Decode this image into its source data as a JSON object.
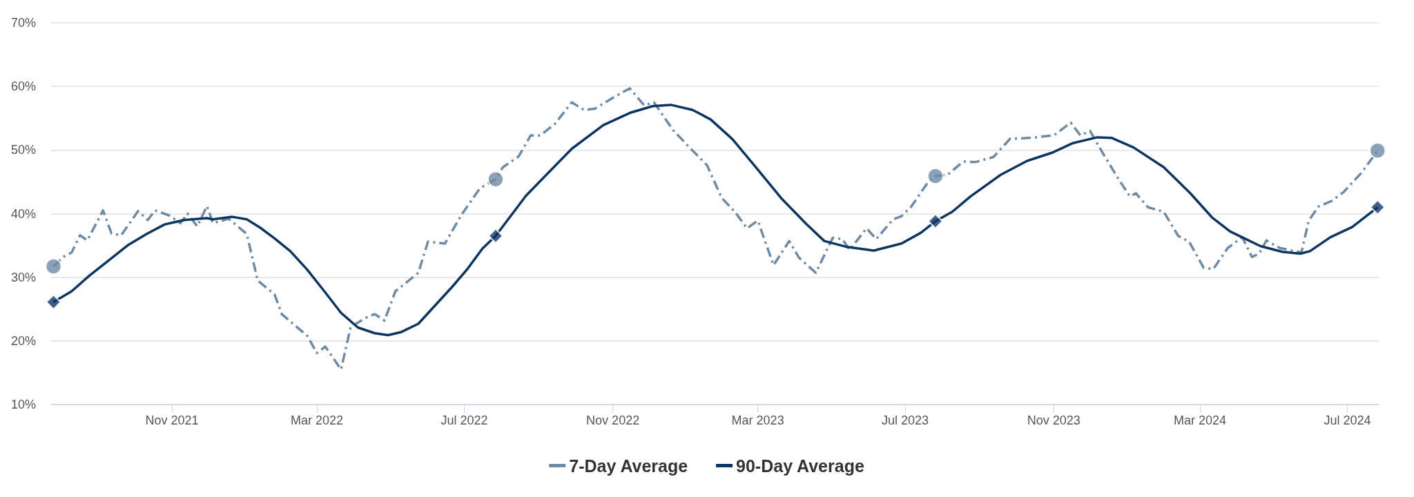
{
  "chart_data": {
    "type": "line",
    "xlim": [
      "2021-07-24",
      "2024-07-27"
    ],
    "xticks": [
      {
        "value": "2021-11-01",
        "label": "Nov 2021"
      },
      {
        "value": "2022-03-01",
        "label": "Mar 2022"
      },
      {
        "value": "2022-07-01",
        "label": "Jul 2022"
      },
      {
        "value": "2022-11-01",
        "label": "Nov 2022"
      },
      {
        "value": "2023-03-01",
        "label": "Mar 2023"
      },
      {
        "value": "2023-07-01",
        "label": "Jul 2023"
      },
      {
        "value": "2023-11-01",
        "label": "Nov 2023"
      },
      {
        "value": "2024-03-01",
        "label": "Mar 2024"
      },
      {
        "value": "2024-07-01",
        "label": "Jul 2024"
      }
    ],
    "ylim": [
      10,
      70
    ],
    "yticks": [
      {
        "value": 10,
        "label": "10%"
      },
      {
        "value": 20,
        "label": "20%"
      },
      {
        "value": 30,
        "label": "30%"
      },
      {
        "value": 40,
        "label": "40%"
      },
      {
        "value": 50,
        "label": "50%"
      },
      {
        "value": 60,
        "label": "60%"
      },
      {
        "value": 70,
        "label": "70%"
      }
    ],
    "grid": "y",
    "legend": "bottom",
    "series": [
      {
        "name": "7-Day Average",
        "color": "#6e8aa5",
        "line_style": "dashed",
        "x": [
          "2021-07-26",
          "2021-08-03",
          "2021-08-10",
          "2021-08-17",
          "2021-08-23",
          "2021-09-05",
          "2021-09-12",
          "2021-09-20",
          "2021-10-04",
          "2021-10-12",
          "2021-10-18",
          "2021-10-30",
          "2021-11-08",
          "2021-11-14",
          "2021-11-22",
          "2021-11-30",
          "2021-12-05",
          "2021-12-18",
          "2022-01-02",
          "2022-01-11",
          "2022-01-25",
          "2022-01-31",
          "2022-02-21",
          "2022-03-01",
          "2022-03-08",
          "2022-03-21",
          "2022-03-29",
          "2022-04-13",
          "2022-04-18",
          "2022-04-26",
          "2022-05-05",
          "2022-05-24",
          "2022-06-01",
          "2022-06-15",
          "2022-06-29",
          "2022-07-14",
          "2022-07-27",
          "2022-08-02",
          "2022-08-15",
          "2022-08-25",
          "2022-09-02",
          "2022-09-14",
          "2022-09-28",
          "2022-10-08",
          "2022-10-17",
          "2022-11-01",
          "2022-11-15",
          "2022-11-27",
          "2022-12-05",
          "2022-12-21",
          "2023-01-03",
          "2023-01-18",
          "2023-01-30",
          "2023-02-10",
          "2023-02-20",
          "2023-03-01",
          "2023-03-14",
          "2023-03-27",
          "2023-04-04",
          "2023-04-18",
          "2023-05-02",
          "2023-05-10",
          "2023-05-16",
          "2023-05-30",
          "2023-06-07",
          "2023-06-21",
          "2023-06-28",
          "2023-07-06",
          "2023-07-19",
          "2023-07-26",
          "2023-08-05",
          "2023-08-18",
          "2023-08-28",
          "2023-09-12",
          "2023-09-26",
          "2023-10-04",
          "2023-10-17",
          "2023-11-01",
          "2023-11-15",
          "2023-11-23",
          "2023-12-01",
          "2023-12-11",
          "2023-12-24",
          "2024-01-03",
          "2024-01-08",
          "2024-01-18",
          "2024-01-31",
          "2024-02-12",
          "2024-02-21",
          "2024-03-04",
          "2024-03-12",
          "2024-03-24",
          "2024-04-05",
          "2024-04-13",
          "2024-04-19",
          "2024-04-25",
          "2024-05-06",
          "2024-05-24",
          "2024-05-30",
          "2024-06-07",
          "2024-06-18",
          "2024-06-28",
          "2024-07-13",
          "2024-07-26"
        ],
        "values": [
          31.7,
          33.2,
          33.9,
          36.6,
          35.8,
          40.5,
          36.9,
          36.6,
          40.4,
          39.0,
          40.5,
          39.7,
          38.5,
          40.0,
          38.0,
          41.2,
          38.5,
          39.2,
          36.8,
          29.5,
          27.3,
          24.2,
          20.8,
          18.1,
          19.1,
          15.5,
          22.2,
          23.9,
          24.2,
          23.2,
          27.8,
          30.7,
          35.6,
          35.3,
          39.9,
          44.0,
          45.4,
          47.3,
          49.0,
          52.3,
          52.3,
          54.1,
          57.5,
          56.3,
          56.5,
          58.2,
          59.7,
          57.0,
          57.5,
          53.1,
          50.5,
          47.6,
          42.5,
          40.3,
          37.7,
          38.9,
          31.9,
          35.7,
          33.1,
          30.7,
          36.2,
          36.0,
          34.3,
          37.7,
          36.0,
          39.1,
          39.6,
          41.1,
          44.7,
          45.9,
          46.1,
          48.2,
          48.1,
          48.9,
          51.8,
          51.8,
          52.0,
          52.3,
          54.3,
          52.3,
          53.0,
          49.7,
          45.6,
          42.7,
          43.2,
          41.0,
          40.3,
          36.5,
          35.6,
          31.5,
          31.3,
          34.6,
          36.3,
          33.2,
          33.7,
          35.8,
          34.6,
          33.9,
          38.9,
          41.1,
          42.0,
          43.4,
          46.5,
          49.9
        ]
      },
      {
        "name": "90-Day Average",
        "color": "#0d3561",
        "line_style": "solid",
        "x": [
          "2021-07-26",
          "2021-08-10",
          "2021-08-25",
          "2021-09-08",
          "2021-09-26",
          "2021-10-11",
          "2021-10-26",
          "2021-11-11",
          "2021-11-30",
          "2021-12-05",
          "2021-12-21",
          "2022-01-02",
          "2022-01-13",
          "2022-01-25",
          "2022-02-07",
          "2022-02-21",
          "2022-03-08",
          "2022-03-21",
          "2022-04-04",
          "2022-04-18",
          "2022-04-29",
          "2022-05-10",
          "2022-05-24",
          "2022-06-07",
          "2022-06-21",
          "2022-07-04",
          "2022-07-16",
          "2022-07-27",
          "2022-08-21",
          "2022-09-11",
          "2022-09-28",
          "2022-10-24",
          "2022-11-16",
          "2022-12-04",
          "2022-12-19",
          "2023-01-06",
          "2023-01-21",
          "2023-02-08",
          "2023-02-26",
          "2023-03-21",
          "2023-04-10",
          "2023-04-25",
          "2023-05-13",
          "2023-06-05",
          "2023-06-28",
          "2023-07-14",
          "2023-07-26",
          "2023-08-09",
          "2023-08-24",
          "2023-09-18",
          "2023-10-10",
          "2023-10-31",
          "2023-11-17",
          "2023-12-07",
          "2023-12-19",
          "2024-01-06",
          "2024-01-31",
          "2024-02-22",
          "2024-03-11",
          "2024-03-26",
          "2024-04-08",
          "2024-04-20",
          "2024-05-08",
          "2024-05-23",
          "2024-05-31",
          "2024-06-17",
          "2024-07-05",
          "2024-07-26"
        ],
        "values": [
          26.1,
          27.8,
          30.3,
          32.4,
          35.1,
          36.8,
          38.3,
          39.0,
          39.3,
          39.1,
          39.5,
          39.1,
          37.8,
          36.1,
          34.1,
          31.2,
          27.6,
          24.4,
          22.1,
          21.2,
          20.9,
          21.4,
          22.7,
          25.6,
          28.5,
          31.4,
          34.5,
          36.5,
          42.8,
          46.9,
          50.2,
          53.9,
          55.9,
          56.9,
          57.1,
          56.3,
          54.8,
          51.7,
          47.6,
          42.3,
          38.4,
          35.7,
          34.8,
          34.2,
          35.3,
          37.0,
          38.8,
          40.3,
          42.7,
          46.1,
          48.3,
          49.6,
          51.1,
          52.0,
          51.9,
          50.4,
          47.3,
          43.2,
          39.4,
          37.2,
          36.0,
          34.9,
          34.0,
          33.7,
          34.1,
          36.3,
          37.9,
          41.0
        ]
      },
      {
        "type": "scatter",
        "color": "#6e8aa5",
        "marker": "circle",
        "x": [
          "2021-07-26",
          "2022-07-27",
          "2023-07-26",
          "2024-07-26"
        ],
        "values": [
          31.7,
          45.4,
          45.9,
          49.9
        ]
      },
      {
        "type": "scatter",
        "color": "#0d3561",
        "marker": "diamond",
        "x": [
          "2021-07-26",
          "2022-07-27",
          "2023-07-26",
          "2024-07-26"
        ],
        "values": [
          26.1,
          36.5,
          38.8,
          41.0
        ]
      }
    ]
  }
}
